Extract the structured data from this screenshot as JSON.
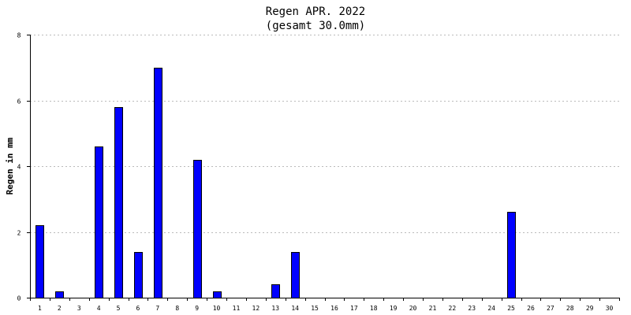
{
  "chart_data": {
    "type": "bar",
    "title": "Regen APR. 2022",
    "subtitle": "(gesamt 30.0mm)",
    "xlabel": "",
    "ylabel": "Regen in mm",
    "categories": [
      "1",
      "2",
      "3",
      "4",
      "5",
      "6",
      "7",
      "8",
      "9",
      "10",
      "11",
      "12",
      "13",
      "14",
      "15",
      "16",
      "17",
      "18",
      "19",
      "20",
      "21",
      "22",
      "23",
      "24",
      "25",
      "26",
      "27",
      "28",
      "29",
      "30"
    ],
    "values": [
      2.2,
      0.2,
      0,
      4.6,
      5.8,
      1.4,
      7.0,
      0,
      4.2,
      0.2,
      0,
      0,
      0.4,
      1.4,
      0,
      0,
      0,
      0,
      0,
      0,
      0,
      0,
      0,
      0,
      2.6,
      0,
      0,
      0,
      0,
      0
    ],
    "ylim": [
      0,
      8
    ],
    "yticks": [
      "0",
      "2",
      "4",
      "6",
      "8"
    ],
    "grid": true,
    "colors": {
      "bar_fill": "#0000ff",
      "bar_stroke": "#000000",
      "grid": "#bbbbbb",
      "axis": "#000000"
    }
  }
}
